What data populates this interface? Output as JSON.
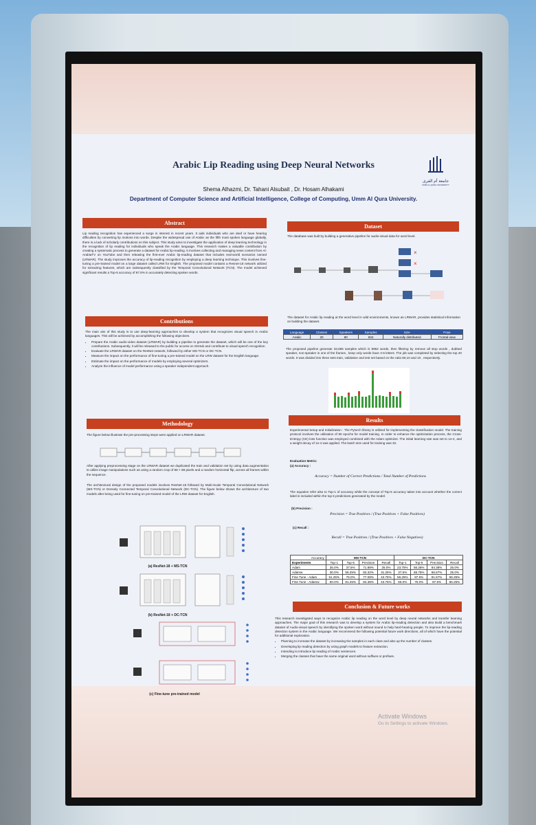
{
  "poster": {
    "title": "Arabic Lip Reading using Deep Neural Networks",
    "authors": "Shema Alhazmi, Dr. Tahani Alsubait , Dr. Hosam Alhakami",
    "department": "Department of Computer Science and Artificial Intelligence, College of Computing, Umm Al Qura University.",
    "logo": {
      "arabic": "جامعة أم القرى",
      "english": "UMM AL-QURA UNIVERSITY"
    },
    "abstract": {
      "heading": "Abstract",
      "text": "Lip reading recognition has experienced a surge in interest in recent years. It aids individuals who are deaf or have hearing difficulties by converting lip motions into words. Despite the widespread use of Arabic as the fifth most spoken language globally, there is a lack of scholarly contributions on this subject. This study aims to investigate the application of deep learning technology in the recognition of lip reading for individuals who speak the Arabic language. This research makes a valuable contribution by creating a systematic process to generate a dataset for Arabic lip-reading. It involves collecting and managing news content from Al-ArabiaTV on YouTube and then releasing the first-ever Arabic lip-reading dataset that includes real-world scenarios named (LRWAR). The study improves the accuracy of lip-reading recognition by employing a deep learning technique. This involves fine-tuning a pre-trained model on a large dataset called LRW for English. The proposed model contains a Resnet-18 network utilized for extracting features, which are subsequently classified by the Temporal Convolutional Network (TCN). The model achieved significant results a Top-5 accuracy of 87.5% in accurately detecting spoken words."
    },
    "contributions": {
      "heading": "Contributions",
      "intro": "The main aim of this study is to use deep-learning approaches to develop a system that recognizes visual speech in Arabic languages. This will be achieved by accomplishing the following objectives.",
      "items": [
        "Prepare the Arabic audio-video dataset (LRWAR) by building a pipeline to generate the dataset, which will be one of the key contributions. Subsequently, it will be released to the public for access on GitHub and contribute to visual speech recognition.",
        "Evaluate the LRWAR dataset on the ResNet network, followed by either MS-TCN or DC-TCN.",
        "Measure the impact on the performance of fine-tuning a pre-trained model on the LRW dataset for the English language.",
        "Estimate the impact on the performance of models by employing several optimizers.",
        "Analyze the influence of model performance using a speaker independent approach."
      ]
    },
    "methodology": {
      "heading": "Methodology",
      "intro": "The figure below illustrate the pre-processing steps were applied on LRWAR dataset.",
      "augmentation": "After applying preprocessing stage on the LRWAR dataset we duplicated the train and validation set by using data augmentation to utilize image manipulations such as using a random crop of 88 × 88 pixels and a random horizontal flip, across all frames within the sequence.",
      "architecture": "The architectural design of the proposed models involves ResNet-18 followed by Multi-Scale Temporal Convolutional Network (MS-TCN) or Densely Connected Temporal Convolutional Network (DC-TCN). The figure below shows the architecture of two models after being used for fine-tuning on pre-trained model of the LRW dataset for English.",
      "captions": [
        "(a) ResNet-18 + MS-TCN",
        "(b) ResNet-18 + DC-TCN",
        "(c) Fine-tune pre-trained model"
      ]
    },
    "dataset": {
      "heading": "Dataset",
      "intro": "The database was built by building a generative pipeline for audio-visual data for word level.",
      "stats_intro": "The dataset for Arabic lip reading at the word level in wild environments, known as LRWAR, provides statistical information on building the dataset.",
      "table": {
        "columns": [
          "Language",
          "Classes",
          "Speakers",
          "Samples",
          "Size",
          "Pose"
        ],
        "rows": [
          [
            "Arabic",
            "20",
            "80",
            "634",
            "Naturally distributed",
            "Frontal-view"
          ]
        ]
      },
      "pipeline_text": "The proposed pipeline generate 33,695 samples which is 9952 words, then filtering by remove all stop words , dubbed speaker, non-speaker in one of the frames , keep only words have 4-6 letters. The job was completed by selecting the top 20 words. It was divided into three sets train, validation and test set based on the ratio 80,10 and 10 , respectively."
    },
    "results": {
      "heading": "Results",
      "setup": "Experimental Setup and Initialization : The Pytorch library is utilized for implementing the classification model. The training protocol involves the utilization of 80 epochs for model training. In order to enhance the optimization process, the Cross-Entropy (CE) loss function was employed combined with the Adam optimizer. The initial learning rate was set to 1e-4, and a weight decay of 1e-4 was applied. The batch size used for training was 32.",
      "metric_heading": "Evaluation Metric:",
      "accuracy_label": "(a) Accuracy :",
      "accuracy_eq": "Accuracy = Number of Correct Predictions / Total Number of Predictions",
      "accuracy_note": "The equation refer also to Top-1 of accuracy while the concept of Top-5 accuracy takes into account whether the correct label is included within the top 5 predictions generated by the model.",
      "precision_label": "(b) Precision :",
      "precision_eq": "Precision = True Positives / (True Positives + False Positives)",
      "recall_label": "(c) Recall :",
      "recall_eq": "Recall = True Positives / (True Positives + False Negatives)",
      "table": {
        "corner_top": "Accuracy",
        "corner_bottom": "Experiments",
        "groups": [
          {
            "name": "MS-TCN",
            "columns": [
              "Top-1",
              "Top-5",
              "Precision",
              "Recall"
            ]
          },
          {
            "name": "DC-TCN",
            "columns": [
              "Top-1",
              "Top-5",
              "Precision",
              "Recall"
            ]
          }
        ],
        "rows": [
          {
            "label": "Adam",
            "values": [
              "25.0%",
              "37.5%",
              "71.88%",
              "25.0%",
              "23.75%",
              "56.25%",
              "84.38%",
              "25.0%"
            ]
          },
          {
            "label": "Adamw",
            "values": [
              "30.0%",
              "56.25%",
              "83.32%",
              "31.25%",
              "37.5%",
              "68.75%",
              "66.67%",
              "25.0%"
            ]
          },
          {
            "label": "Fine Tune - Adam",
            "values": [
              "51.25%",
              "75.0%",
              "77.08%",
              "43.75%",
              "56.25%",
              "87.5%",
              "91.67%",
              "56.25%"
            ]
          },
          {
            "label": "Fine Tune - Adamw",
            "values": [
              "50.0%",
              "81.25%",
              "84.38%",
              "43.75%",
              "55.0%",
              "75.0%",
              "87.5%",
              "56.25%"
            ]
          }
        ]
      }
    },
    "conclusion": {
      "heading": "Conclusion & Future works",
      "text": "This research investigated ways to recognize Arabic lip reading on the word level by deep neural networks and transfer learning approaches. The major goal of this research was to develop a system for Arabic lip-reading detection and also Build a benchmark dataset of Audio-visual speech by identifying the spoken word without sound to help hard-hearing people. To improve the lip-reading detection system in the Arabic language. We recommend the following potential future work directions, all of which have the potential for additional exploration.",
      "items": [
        "Planning to increase the dataset by increasing the samples in each class and also up the number of classes.",
        "Developing lip reading detection by using graph models to feature extraction.",
        "Intending to introduce lip reading of Arabic sentences.",
        "Merging the classes that have the same original word without suffixes or prefixes."
      ]
    }
  },
  "watermark": {
    "title": "Activate Windows",
    "subtitle": "Go to Settings to activate Windows."
  }
}
